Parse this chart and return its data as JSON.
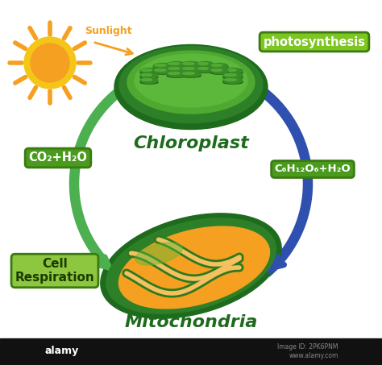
{
  "bg_color": "#ffffff",
  "labels": {
    "chloroplast": "Chloroplast",
    "mitochondria": "Mitochondria",
    "photosynthesis": "photosynthesis",
    "co2_h2o": "CO₂+H₂O",
    "c6h12o6": "C₆H₁₂O₆+H₂O",
    "cell_respiration": "Cell\nRespiration",
    "sunlight": "Sunlight"
  },
  "colors": {
    "dark_green": "#1e6b1e",
    "mid_green": "#3a8a2a",
    "bright_green": "#5aaf3a",
    "light_green": "#8dc63f",
    "pale_green": "#a8d45a",
    "arrow_green": "#4caf50",
    "arrow_blue": "#3050b0",
    "sun_yellow": "#f5c518",
    "sun_orange": "#f5a020",
    "orange": "#f5a020",
    "box_co2_bg": "#4a8f1e",
    "box_photo_bg": "#7dc520",
    "box_cell_bg": "#8dc63f",
    "box_c6_bg": "#5aaa28",
    "text_green_dark": "#1a5a0a",
    "text_white": "#ffffff"
  },
  "bottom_bar_color": "#111111"
}
